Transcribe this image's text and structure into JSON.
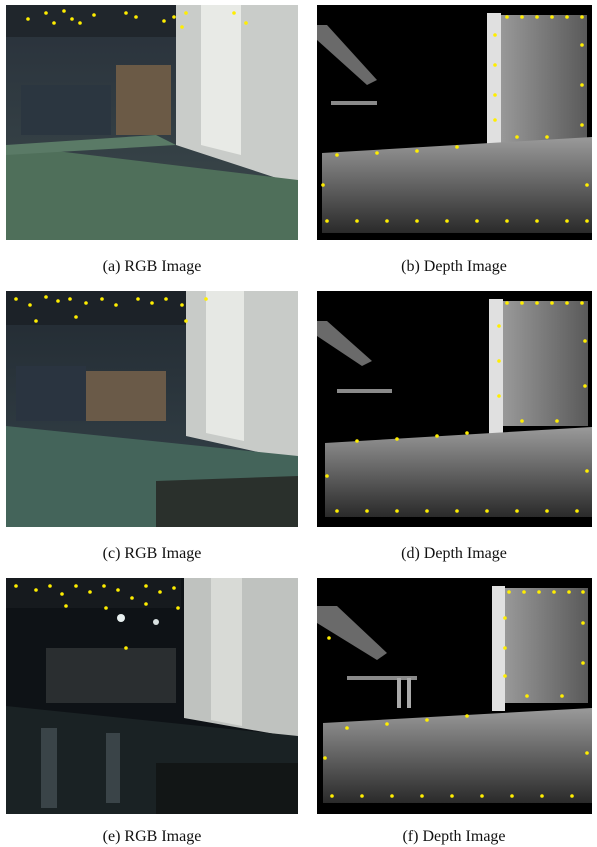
{
  "figure": {
    "captions": [
      "(a) RGB Image",
      "(b) Depth Image",
      "(c) RGB Image",
      "(d) Depth Image",
      "(e) RGB Image",
      "(f) Depth Image"
    ]
  },
  "colors": {
    "feature_point": "#ffee00",
    "depth_background": "#000000",
    "floor_green": "#4f6f5a"
  }
}
